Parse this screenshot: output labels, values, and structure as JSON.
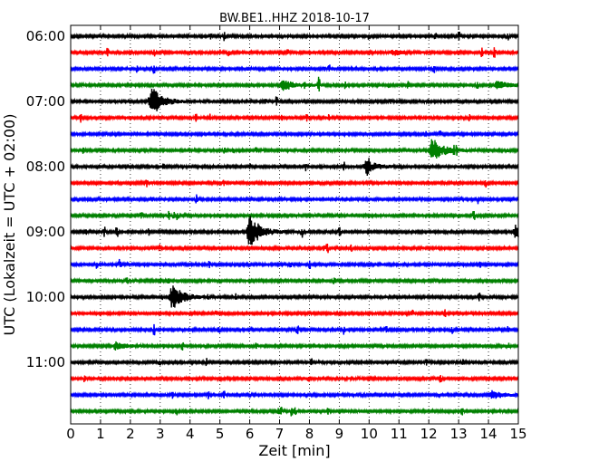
{
  "chart_data": {
    "type": "line",
    "title": "BW.BE1..HHZ 2018-10-17",
    "xlabel": "Zeit  [min]",
    "ylabel": "UTC (Lokalzeit = UTC + 02:00)",
    "xlim": [
      0,
      15
    ],
    "x_ticks": [
      0,
      1,
      2,
      3,
      4,
      5,
      6,
      7,
      8,
      9,
      10,
      11,
      12,
      13,
      14,
      15
    ],
    "y_tick_labels": [
      "06:00",
      "07:00",
      "08:00",
      "09:00",
      "10:00",
      "11:00"
    ],
    "y_tick_rows": [
      0,
      4,
      8,
      12,
      16,
      20
    ],
    "grid": "vertical dotted",
    "row_interval_minutes": 15,
    "row_colors": [
      "#000000",
      "#ff0000",
      "#0000ff",
      "#008000"
    ],
    "events": [
      {
        "row": 4,
        "minute": 2.7,
        "amplitude": 1.2
      },
      {
        "row": 7,
        "minute": 12.1,
        "amplitude": 1.0
      },
      {
        "row": 12,
        "minute": 6.0,
        "amplitude": 1.3
      },
      {
        "row": 16,
        "minute": 3.4,
        "amplitude": 0.95
      },
      {
        "row": 12,
        "minute": 14.9,
        "amplitude": 0.5
      },
      {
        "row": 3,
        "minute": 7.1,
        "amplitude": 0.45
      },
      {
        "row": 8,
        "minute": 9.9,
        "amplitude": 0.5
      },
      {
        "row": 3,
        "minute": 14.3,
        "amplitude": 0.3
      },
      {
        "row": 22,
        "minute": 14.1,
        "amplitude": 0.35
      },
      {
        "row": 1,
        "minute": 10.8,
        "amplitude": 0.2
      },
      {
        "row": 19,
        "minute": 1.5,
        "amplitude": 0.3
      }
    ]
  }
}
